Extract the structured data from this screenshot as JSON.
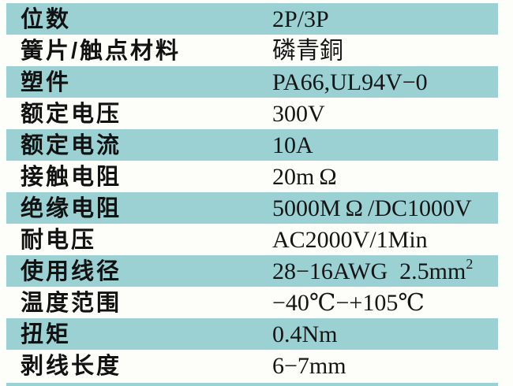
{
  "colors": {
    "highlight_row": "#9cd1d4",
    "background": "#fdfdfa",
    "text": "#121212"
  },
  "table": {
    "rows": [
      {
        "label": "位数",
        "value": "2P/3P",
        "highlight": true
      },
      {
        "label": "簧片/触点材料",
        "value": "磷青銅",
        "highlight": false
      },
      {
        "label": "塑件",
        "value": "PA66,UL94V−0",
        "highlight": true
      },
      {
        "label": "额定电压",
        "value": "300V",
        "highlight": false
      },
      {
        "label": "额定电流",
        "value": "10A",
        "highlight": true
      },
      {
        "label": "接触电阻",
        "value": "20m Ω",
        "highlight": false
      },
      {
        "label": "绝缘电阻",
        "value": "5000M Ω /DC1000V",
        "highlight": true
      },
      {
        "label": "耐电压",
        "value": "AC2000V/1Min",
        "highlight": false
      },
      {
        "label": "使用线径",
        "value": "28−16AWG  2.5mm",
        "value_superscript": "2",
        "highlight": true
      },
      {
        "label": "温度范围",
        "value": "−40℃−+105℃",
        "highlight": false
      },
      {
        "label": "扭矩",
        "value": "0.4Nm",
        "highlight": true
      },
      {
        "label": "剥线长度",
        "value": "6−7mm",
        "highlight": false
      }
    ],
    "partial_next_row_visible": true
  }
}
